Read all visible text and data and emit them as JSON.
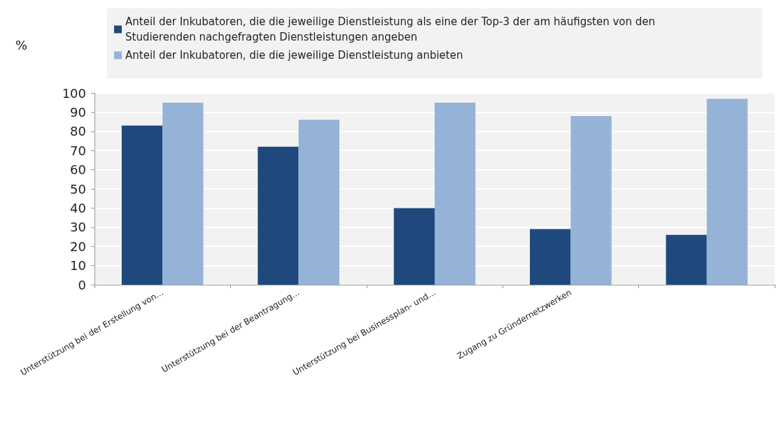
{
  "chart_data": {
    "type": "bar",
    "ylabel": "%",
    "categories": [
      "Unterstützung bei der Erstellung von...",
      "Unterstützung bei der Beantragung...",
      "Unterstützung bei Businessplan- und...",
      "Zugang zu Gründernetzwerken",
      null
    ],
    "series": [
      {
        "name": "Anteil der Inkubatoren, die die jeweilige Dienstleistung als eine der Top-3 der am häufigsten von den Studierenden nachgefragten Dienstleistungen angeben",
        "color": "#1f497d",
        "values": [
          83,
          72,
          40,
          29,
          26
        ]
      },
      {
        "name": "Anteil der Inkubatoren, die die jeweilige Dienstleistung anbieten",
        "color": "#95b3d7",
        "values": [
          95,
          86,
          95,
          88,
          97
        ]
      }
    ],
    "ylim": [
      0,
      100
    ],
    "yticks": [
      0,
      10,
      20,
      30,
      40,
      50,
      60,
      70,
      80,
      90,
      100
    ],
    "grid": "y",
    "legend": "top"
  }
}
